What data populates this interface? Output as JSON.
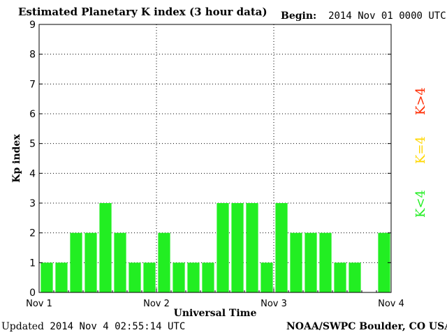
{
  "header": {
    "title": "Estimated Planetary K index (3 hour data)",
    "begin_label": "Begin:",
    "begin_value": "2014 Nov 01 0000 UTC"
  },
  "footer": {
    "updated_label": "Updated",
    "updated_value": "2014 Nov  4 02:55:14 UTC",
    "credit": "NOAA/SWPC Boulder, CO USA"
  },
  "legend": {
    "above": "K>4",
    "equal": "K=4",
    "below": "K<4",
    "colors": {
      "above": "#ff2a00",
      "equal": "#ffd700",
      "below": "#22ee22"
    }
  },
  "chart_data": {
    "type": "bar",
    "title": "Estimated Planetary K index (3 hour data)",
    "xlabel": "Universal Time",
    "ylabel": "Kp index",
    "ylim": [
      0,
      9
    ],
    "yticks": [
      0,
      1,
      2,
      3,
      4,
      5,
      6,
      7,
      8,
      9
    ],
    "xticks": [
      "Nov 1",
      "Nov 2",
      "Nov 3",
      "Nov 4"
    ],
    "interval_hours": 3,
    "values": [
      1,
      1,
      2,
      2,
      3,
      2,
      1,
      1,
      2,
      1,
      1,
      1,
      3,
      3,
      3,
      1,
      3,
      2,
      2,
      2,
      1,
      1,
      null,
      2
    ],
    "bar_color": "#22ee22",
    "grid": true
  }
}
